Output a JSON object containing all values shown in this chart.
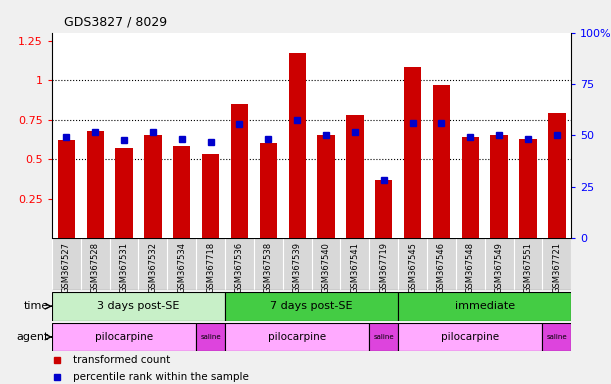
{
  "title": "GDS3827 / 8029",
  "samples": [
    "GSM367527",
    "GSM367528",
    "GSM367531",
    "GSM367532",
    "GSM367534",
    "GSM367718",
    "GSM367536",
    "GSM367538",
    "GSM367539",
    "GSM367540",
    "GSM367541",
    "GSM367719",
    "GSM367545",
    "GSM367546",
    "GSM367548",
    "GSM367549",
    "GSM367551",
    "GSM367721"
  ],
  "red_values": [
    0.62,
    0.68,
    0.57,
    0.65,
    0.58,
    0.53,
    0.85,
    0.6,
    1.17,
    0.65,
    0.78,
    0.37,
    1.08,
    0.97,
    0.64,
    0.65,
    0.63,
    0.79
  ],
  "blue_values": [
    0.64,
    0.67,
    0.62,
    0.67,
    0.63,
    0.61,
    0.72,
    0.63,
    0.75,
    0.65,
    0.67,
    0.37,
    0.73,
    0.73,
    0.64,
    0.65,
    0.63,
    0.65
  ],
  "ylim_left": [
    0.0,
    1.3
  ],
  "ylim_right": [
    0,
    100
  ],
  "yticks_left": [
    0.25,
    0.5,
    0.75,
    1.0,
    1.25
  ],
  "yticks_right": [
    0,
    25,
    50,
    75,
    100
  ],
  "ytick_labels_left": [
    "0.25",
    "0.5",
    "0.75",
    "1",
    "1.25"
  ],
  "ytick_labels_right": [
    "0",
    "25",
    "50",
    "75",
    "100%"
  ],
  "hlines": [
    0.5,
    0.75,
    1.0
  ],
  "bar_color": "#cc0000",
  "dot_color": "#0000cc",
  "plot_bg": "#ffffff",
  "fig_bg": "#f0f0f0",
  "label_bg": "#d8d8d8",
  "time_groups": [
    {
      "label": "3 days post-SE",
      "start": 0,
      "end": 6,
      "color": "#c8f0c8"
    },
    {
      "label": "7 days post-SE",
      "start": 6,
      "end": 12,
      "color": "#44cc44"
    },
    {
      "label": "immediate",
      "start": 12,
      "end": 18,
      "color": "#44cc44"
    }
  ],
  "agent_groups": [
    {
      "label": "pilocarpine",
      "start": 0,
      "end": 5,
      "color": "#ffaaff"
    },
    {
      "label": "saline",
      "start": 5,
      "end": 6,
      "color": "#dd44dd"
    },
    {
      "label": "pilocarpine",
      "start": 6,
      "end": 11,
      "color": "#ffaaff"
    },
    {
      "label": "saline",
      "start": 11,
      "end": 12,
      "color": "#dd44dd"
    },
    {
      "label": "pilocarpine",
      "start": 12,
      "end": 17,
      "color": "#ffaaff"
    },
    {
      "label": "saline",
      "start": 17,
      "end": 18,
      "color": "#dd44dd"
    }
  ],
  "legend_items": [
    {
      "label": "transformed count",
      "color": "#cc0000"
    },
    {
      "label": "percentile rank within the sample",
      "color": "#0000cc"
    }
  ]
}
